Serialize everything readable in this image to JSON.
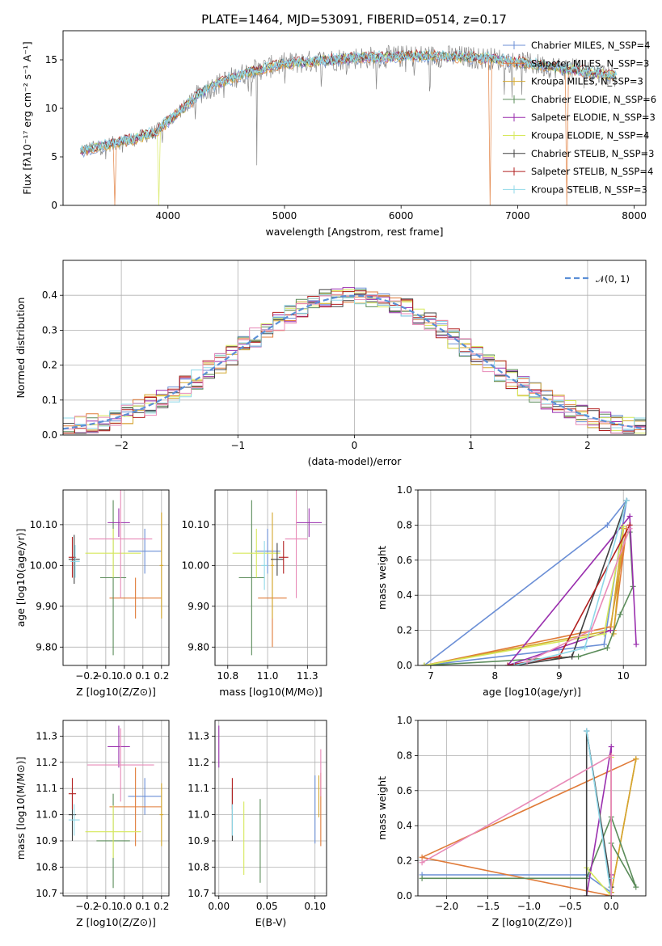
{
  "title": "PLATE=1464, MJD=53091, FIBERID=0514, z=0.17",
  "colors": {
    "data": "#888888",
    "chabrier_miles": "#6b8fd6",
    "salpeter_miles": "#e07b39",
    "kroupa_miles": "#d4a82e",
    "chabrier_elodie": "#5b8c5a",
    "salpeter_elodie": "#9a2fae",
    "kroupa_elodie": "#d6e85a",
    "chabrier_stelib": "#404040",
    "salpeter_stelib": "#b22020",
    "kroupa_stelib": "#8fd8e8",
    "pink": "#e88ab8",
    "normal": "#5b8fd6",
    "grid": "#b0b0b0"
  },
  "legend": {
    "entries": [
      "Chabrier MILES, N_SSP=4",
      "Salpeter MILES, N_SSP=3",
      "Kroupa MILES, N_SSP=3",
      "Chabrier ELODIE, N_SSP=6",
      "Salpeter ELODIE, N_SSP=3",
      "Kroupa ELODIE, N_SSP=4",
      "Chabrier STELIB, N_SSP=3",
      "Salpeter STELIB, N_SSP=4",
      "Kroupa STELIB, N_SSP=3"
    ],
    "normal_label": "𝒩(0, 1)"
  },
  "chart_data": [
    {
      "id": "spectrum",
      "type": "line",
      "xlabel": "wavelength [Angstrom, rest frame]",
      "ylabel": "Flux [fλ10⁻¹⁷ erg cm⁻² s⁻¹ A⁻¹]",
      "xlim": [
        3100,
        8100
      ],
      "ylim": [
        0,
        18
      ],
      "xticks": [
        4000,
        5000,
        6000,
        7000,
        8000
      ],
      "yticks": [
        0,
        5,
        10,
        15
      ],
      "grid": false,
      "legend_position": "top-right",
      "continuum": {
        "x": [
          3250,
          3500,
          3700,
          3900,
          4100,
          4300,
          4500,
          4700,
          5000,
          5300,
          5600,
          5900,
          6200,
          6500,
          6800,
          7100,
          7400,
          7700,
          7850
        ],
        "y": [
          5.6,
          6.3,
          6.8,
          7.6,
          9.7,
          11.8,
          12.9,
          13.8,
          14.6,
          14.9,
          15.2,
          15.3,
          15.4,
          15.3,
          15.1,
          14.6,
          14.1,
          13.6,
          13.3
        ]
      },
      "model_drops": [
        {
          "series": 1,
          "x": 3540,
          "to": 0
        },
        {
          "series": 5,
          "x": 3920,
          "to": 0
        },
        {
          "series": 1,
          "x": 6770,
          "to": 0
        },
        {
          "series": 1,
          "x": 7420,
          "to": 0
        }
      ]
    },
    {
      "id": "residuals",
      "type": "histogram",
      "xlabel": "(data-model)/error",
      "ylabel": "Normed distribution",
      "xlim": [
        -2.5,
        2.5
      ],
      "ylim": [
        0,
        0.5
      ],
      "xticks": [
        -2,
        -1,
        0,
        1,
        2
      ],
      "yticks": [
        0,
        0.1,
        0.2,
        0.3,
        0.4
      ],
      "grid": true,
      "bin_width": 0.1,
      "normal_curve": {
        "mean": 0,
        "sigma": 1
      }
    },
    {
      "id": "age_vs_Z",
      "type": "errorbar",
      "xlabel": "Z [log10(Z/Z⊙)]",
      "ylabel": "age  [log10(age/yr)]",
      "xlim": [
        -0.33,
        0.24
      ],
      "ylim": [
        9.755,
        10.185
      ],
      "xticks": [
        -0.2,
        -0.1,
        0.0,
        0.1,
        0.2
      ],
      "yticks": [
        9.8,
        9.9,
        10.0,
        10.1
      ],
      "points": [
        {
          "c": "chabrier_miles",
          "x": 0.11,
          "y": 10.035,
          "xe": 0.09,
          "ye": 0.055
        },
        {
          "c": "salpeter_miles",
          "x": 0.06,
          "y": 9.92,
          "xe": 0.14,
          "ye": 0.05
        },
        {
          "c": "kroupa_miles",
          "x": 0.2,
          "y": 10.0,
          "xe": 0.01,
          "ye": 0.13
        },
        {
          "c": "chabrier_elodie",
          "x": -0.06,
          "y": 9.97,
          "xe": 0.07,
          "ye": 0.19
        },
        {
          "c": "salpeter_elodie",
          "x": -0.03,
          "y": 10.105,
          "xe": 0.06,
          "ye": 0.035
        },
        {
          "c": "kroupa_elodie",
          "x": -0.06,
          "y": 10.03,
          "xe": 0.15,
          "ye": 0.06
        },
        {
          "c": "chabrier_stelib",
          "x": -0.27,
          "y": 10.015,
          "xe": 0.03,
          "ye": 0.06
        },
        {
          "c": "salpeter_stelib",
          "x": -0.28,
          "y": 10.02,
          "xe": 0.02,
          "ye": 0.05
        },
        {
          "c": "kroupa_stelib",
          "x": -0.265,
          "y": 10.01,
          "xe": 0.025,
          "ye": 0.04
        },
        {
          "c": "pink",
          "x": -0.02,
          "y": 10.065,
          "xe": 0.17,
          "ye": 0.145
        }
      ]
    },
    {
      "id": "age_vs_mass",
      "type": "errorbar",
      "xlabel": "mass [log10(M/M⊙)]",
      "ylabel": "",
      "xlim": [
        10.67,
        11.37
      ],
      "ylim": [
        9.755,
        10.185
      ],
      "xticks": [
        10.75,
        11.0,
        11.25
      ],
      "yticks": [
        9.8,
        9.9,
        10.0,
        10.1
      ],
      "points": [
        {
          "c": "chabrier_miles",
          "x": 11.0,
          "y": 10.035,
          "xe": 0.08,
          "ye": 0.055
        },
        {
          "c": "salpeter_miles",
          "x": 11.03,
          "y": 9.92,
          "xe": 0.09,
          "ye": 0.12
        },
        {
          "c": "kroupa_miles",
          "x": 11.03,
          "y": 10.0,
          "xe": 0.01,
          "ye": 0.13
        },
        {
          "c": "chabrier_elodie",
          "x": 10.9,
          "y": 9.97,
          "xe": 0.08,
          "ye": 0.19
        },
        {
          "c": "salpeter_elodie",
          "x": 11.26,
          "y": 10.105,
          "xe": 0.08,
          "ye": 0.035
        },
        {
          "c": "kroupa_elodie",
          "x": 10.93,
          "y": 10.03,
          "xe": 0.15,
          "ye": 0.06
        },
        {
          "c": "chabrier_stelib",
          "x": 11.06,
          "y": 10.015,
          "xe": 0.04,
          "ye": 0.04
        },
        {
          "c": "salpeter_stelib",
          "x": 11.1,
          "y": 10.02,
          "xe": 0.03,
          "ye": 0.04
        },
        {
          "c": "kroupa_stelib",
          "x": 10.98,
          "y": 10.0,
          "xe": 0.02,
          "ye": 0.06
        },
        {
          "c": "pink",
          "x": 11.18,
          "y": 10.065,
          "xe": 0.07,
          "ye": 0.145
        }
      ]
    },
    {
      "id": "weight_vs_age",
      "type": "line",
      "xlabel": "age  [log10(age/yr)]",
      "ylabel": "mass weight",
      "xlim": [
        6.8,
        10.35
      ],
      "ylim": [
        0,
        1.0
      ],
      "xticks": [
        7,
        8,
        9,
        10
      ],
      "yticks": [
        0.0,
        0.2,
        0.4,
        0.6,
        0.8,
        1.0
      ],
      "grid": true,
      "series": [
        {
          "c": "chabrier_miles",
          "x": [
            6.9,
            9.7,
            10.05,
            9.75,
            6.9
          ],
          "y": [
            0.0,
            0.12,
            0.94,
            0.8,
            0.0
          ]
        },
        {
          "c": "salpeter_miles",
          "x": [
            6.9,
            9.8,
            10.05,
            9.85
          ],
          "y": [
            0.0,
            0.22,
            0.78,
            0.2
          ]
        },
        {
          "c": "kroupa_miles",
          "x": [
            6.9,
            9.8,
            10.0,
            9.85
          ],
          "y": [
            0.0,
            0.2,
            0.78,
            0.18
          ]
        },
        {
          "c": "chabrier_elodie",
          "x": [
            6.9,
            9.3,
            9.75,
            9.95,
            10.15,
            10.1
          ],
          "y": [
            0.0,
            0.05,
            0.1,
            0.29,
            0.45,
            0.76
          ]
        },
        {
          "c": "salpeter_elodie",
          "x": [
            10.2,
            10.1,
            8.2,
            9.8
          ],
          "y": [
            0.12,
            0.85,
            0.0,
            0.2
          ]
        },
        {
          "c": "kroupa_elodie",
          "x": [
            6.9,
            9.7,
            10.0
          ],
          "y": [
            0.0,
            0.18,
            0.79
          ]
        },
        {
          "c": "chabrier_stelib",
          "x": [
            8.3,
            9.2,
            10.05
          ],
          "y": [
            0.0,
            0.05,
            0.94
          ]
        },
        {
          "c": "salpeter_stelib",
          "x": [
            8.2,
            9.0,
            10.1
          ],
          "y": [
            0.0,
            0.05,
            0.8
          ]
        },
        {
          "c": "kroupa_stelib",
          "x": [
            8.3,
            9.4,
            10.05
          ],
          "y": [
            0.0,
            0.1,
            0.94
          ]
        },
        {
          "c": "pink",
          "x": [
            8.5,
            9.5,
            10.1
          ],
          "y": [
            0.02,
            0.2,
            0.78
          ]
        }
      ]
    },
    {
      "id": "mass_vs_Z",
      "type": "errorbar",
      "xlabel": "Z [log10(Z/Z⊙)]",
      "ylabel": "mass [log10(M/M⊙)]",
      "xlim": [
        -0.33,
        0.24
      ],
      "ylim": [
        10.69,
        11.36
      ],
      "xticks": [
        -0.2,
        -0.1,
        0.0,
        0.1,
        0.2
      ],
      "yticks": [
        10.7,
        10.8,
        10.9,
        11.0,
        11.1,
        11.2,
        11.3
      ],
      "points": [
        {
          "c": "chabrier_miles",
          "x": 0.11,
          "y": 11.07,
          "xe": 0.09,
          "ye": 0.07
        },
        {
          "c": "salpeter_miles",
          "x": 0.06,
          "y": 11.03,
          "xe": 0.14,
          "ye": 0.15
        },
        {
          "c": "kroupa_miles",
          "x": 0.2,
          "y": 11.0,
          "xe": 0.01,
          "ye": 0.12
        },
        {
          "c": "chabrier_elodie",
          "x": -0.06,
          "y": 10.9,
          "xe": 0.09,
          "ye": 0.18
        },
        {
          "c": "salpeter_elodie",
          "x": -0.03,
          "y": 11.26,
          "xe": 0.06,
          "ye": 0.08
        },
        {
          "c": "kroupa_elodie",
          "x": -0.06,
          "y": 10.935,
          "xe": 0.15,
          "ye": 0.1
        },
        {
          "c": "chabrier_stelib",
          "x": -0.28,
          "y": 11.0,
          "xe": 0.02,
          "ye": 0.1
        },
        {
          "c": "salpeter_stelib",
          "x": -0.28,
          "y": 11.08,
          "xe": 0.02,
          "ye": 0.06
        },
        {
          "c": "kroupa_stelib",
          "x": -0.27,
          "y": 10.98,
          "xe": 0.03,
          "ye": 0.06
        },
        {
          "c": "pink",
          "x": -0.02,
          "y": 11.19,
          "xe": 0.18,
          "ye": 0.14
        }
      ]
    },
    {
      "id": "mass_vs_ebv",
      "type": "errorbar",
      "xlabel": "E(B-V)",
      "ylabel": "",
      "xlim": [
        -0.004,
        0.112
      ],
      "ylim": [
        10.69,
        11.36
      ],
      "xticks": [
        0.0,
        0.05,
        0.1
      ],
      "yticks": [
        10.7,
        10.8,
        10.9,
        11.0,
        11.1,
        11.2,
        11.3
      ],
      "points": [
        {
          "c": "chabrier_miles",
          "x": 0.1,
          "y": 11.02,
          "xe": 0,
          "ye": 0.13
        },
        {
          "c": "salpeter_miles",
          "x": 0.106,
          "y": 11.02,
          "xe": 0,
          "ye": 0.14
        },
        {
          "c": "kroupa_miles",
          "x": 0.104,
          "y": 11.07,
          "xe": 0,
          "ye": 0.08
        },
        {
          "c": "chabrier_elodie",
          "x": 0.043,
          "y": 10.9,
          "xe": 0,
          "ye": 0.16
        },
        {
          "c": "salpeter_elodie",
          "x": 0.0,
          "y": 11.26,
          "xe": 0,
          "ye": 0.08
        },
        {
          "c": "kroupa_elodie",
          "x": 0.026,
          "y": 10.91,
          "xe": 0,
          "ye": 0.14
        },
        {
          "c": "chabrier_stelib",
          "x": 0.014,
          "y": 11.0,
          "xe": 0,
          "ye": 0.1
        },
        {
          "c": "salpeter_stelib",
          "x": 0.014,
          "y": 11.08,
          "xe": 0,
          "ye": 0.06
        },
        {
          "c": "kroupa_stelib",
          "x": 0.014,
          "y": 10.98,
          "xe": 0,
          "ye": 0.06
        },
        {
          "c": "pink",
          "x": 0.106,
          "y": 11.16,
          "xe": 0,
          "ye": 0.09
        }
      ]
    },
    {
      "id": "weight_vs_Z",
      "type": "line",
      "xlabel": "Z [log10(Z/Z⊙)]",
      "ylabel": "mass weight",
      "xlim": [
        -2.35,
        0.42
      ],
      "ylim": [
        0,
        1.0
      ],
      "xticks": [
        -2.0,
        -1.5,
        -1.0,
        -0.5,
        0.0
      ],
      "yticks": [
        0.0,
        0.2,
        0.4,
        0.6,
        0.8,
        1.0
      ],
      "grid": true,
      "series": [
        {
          "c": "chabrier_miles",
          "x": [
            -2.3,
            -0.3,
            0.0,
            -0.3
          ],
          "y": [
            0.12,
            0.12,
            0.02,
            0.94
          ]
        },
        {
          "c": "salpeter_miles",
          "x": [
            0.0,
            0.3,
            -2.3,
            0.0
          ],
          "y": [
            0.02,
            0.78,
            0.22,
            0.0
          ]
        },
        {
          "c": "kroupa_miles",
          "x": [
            0.0,
            0.3
          ],
          "y": [
            0.02,
            0.78
          ]
        },
        {
          "c": "chabrier_elodie",
          "x": [
            -2.3,
            -0.3,
            0.0,
            0.3,
            0.0
          ],
          "y": [
            0.1,
            0.1,
            0.45,
            0.05,
            0.3
          ]
        },
        {
          "c": "salpeter_elodie",
          "x": [
            -0.3,
            0.0,
            0.0
          ],
          "y": [
            0.0,
            0.85,
            0.12
          ]
        },
        {
          "c": "kroupa_elodie",
          "x": [
            -0.3,
            0.0,
            0.0
          ],
          "y": [
            0.16,
            0.0,
            0.79
          ]
        },
        {
          "c": "chabrier_stelib",
          "x": [
            -0.3,
            -0.3,
            0.0
          ],
          "y": [
            0.0,
            0.94,
            0.05
          ]
        },
        {
          "c": "salpeter_stelib",
          "x": [
            0.0,
            0.0
          ],
          "y": [
            0.0,
            0.8
          ]
        },
        {
          "c": "kroupa_stelib",
          "x": [
            -0.3,
            0.0,
            0.0
          ],
          "y": [
            0.94,
            0.0,
            0.1
          ]
        },
        {
          "c": "pink",
          "x": [
            -2.3,
            0.0,
            0.0
          ],
          "y": [
            0.19,
            0.8,
            0.0
          ]
        }
      ]
    }
  ]
}
